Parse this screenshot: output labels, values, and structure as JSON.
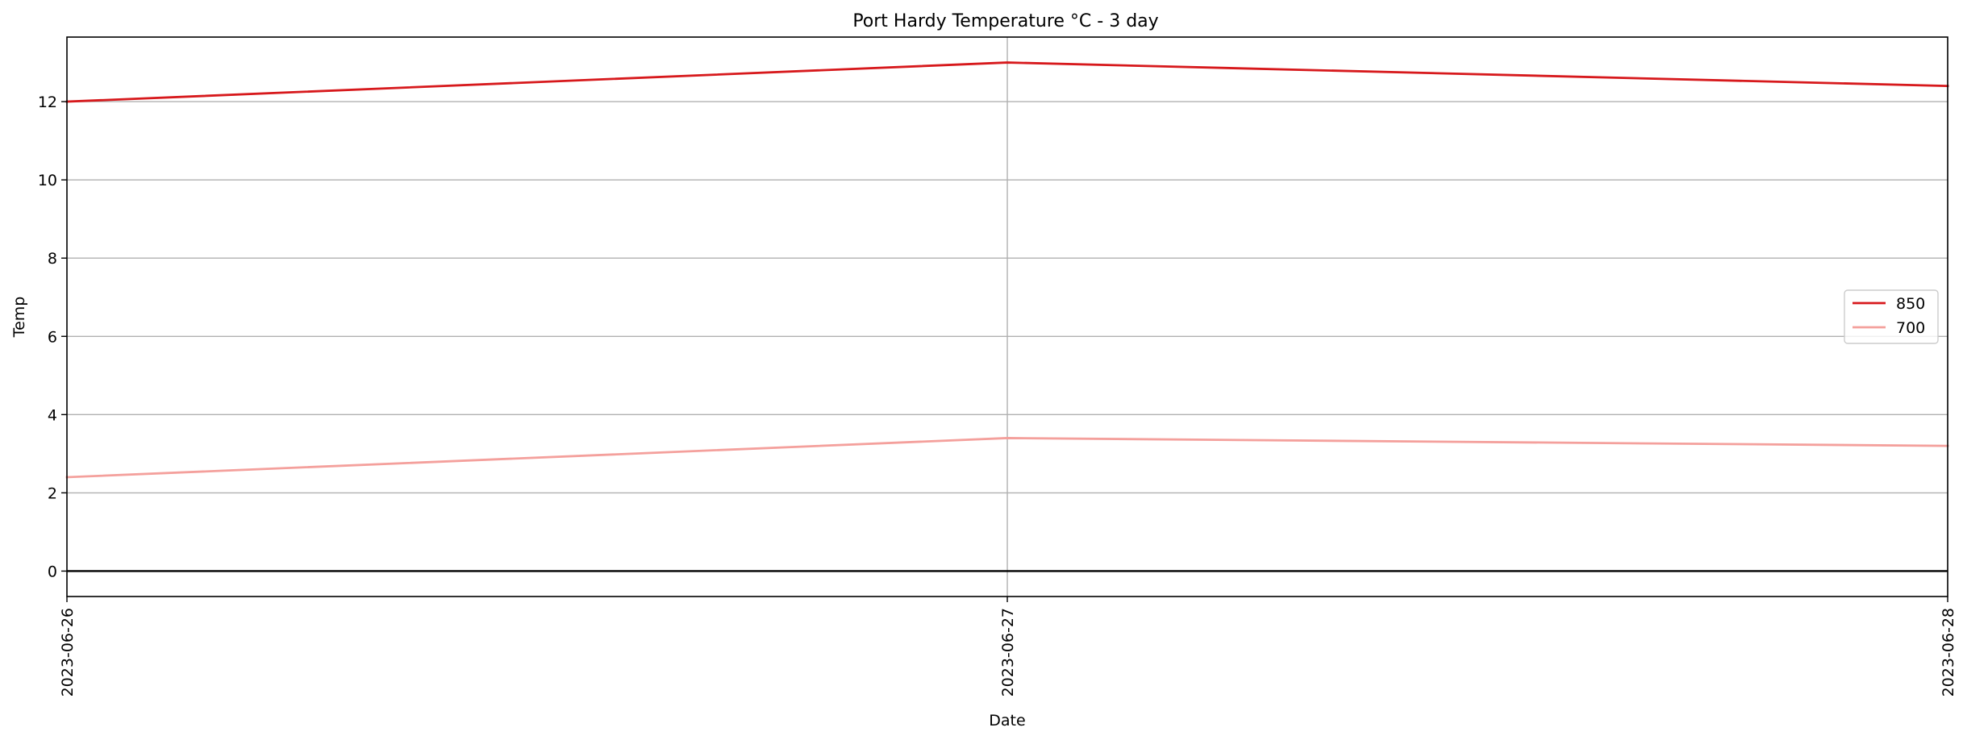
{
  "chart_data": {
    "type": "line",
    "title": "Port Hardy Temperature °C - 3 day",
    "xlabel": "Date",
    "ylabel": "Temp",
    "x": [
      "2023-06-26",
      "2023-06-27",
      "2023-06-28"
    ],
    "xlim": [
      "2023-06-26",
      "2023-06-28"
    ],
    "ylim": [
      -0.65,
      13.65
    ],
    "yticks": [
      0,
      2,
      4,
      6,
      8,
      10,
      12
    ],
    "grid": true,
    "grid_x_at": [
      "2023-06-27"
    ],
    "reference_line": 0,
    "legend_position": "right",
    "series": [
      {
        "name": "850",
        "values": [
          12.0,
          13.0,
          12.4
        ],
        "color": "#d7191c"
      },
      {
        "name": "700",
        "values": [
          2.4,
          3.4,
          3.2
        ],
        "color": "#f4a09c"
      }
    ]
  }
}
